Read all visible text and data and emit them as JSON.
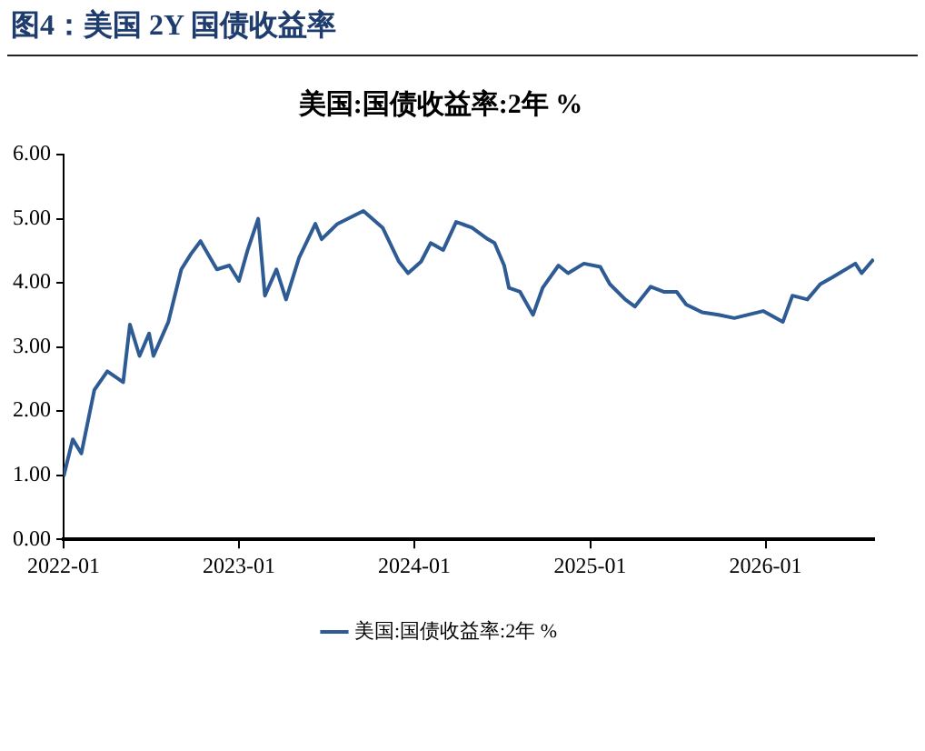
{
  "chart_data": {
    "type": "line",
    "title": "图4：美国 2Y 国债收益率",
    "subtitle": "美国:国债收益率:2年 %",
    "x": [
      "2022-01-01",
      "2022-01-20",
      "2022-02-07",
      "2022-03-06",
      "2022-04-02",
      "2022-05-05",
      "2022-05-19",
      "2022-06-08",
      "2022-06-28",
      "2022-07-07",
      "2022-08-07",
      "2022-09-03",
      "2022-09-23",
      "2022-10-13",
      "2022-11-16",
      "2022-12-12",
      "2023-01-01",
      "2023-01-19",
      "2023-02-10",
      "2023-02-24",
      "2023-03-20",
      "2023-04-09",
      "2023-05-06",
      "2023-06-09",
      "2023-06-22",
      "2023-07-25",
      "2023-09-17",
      "2023-10-27",
      "2023-11-30",
      "2023-12-19",
      "2024-01-15",
      "2024-02-04",
      "2024-03-01",
      "2024-03-28",
      "2024-04-30",
      "2024-06-02",
      "2024-06-16",
      "2024-07-06",
      "2024-07-16",
      "2024-08-08",
      "2024-09-04",
      "2024-09-24",
      "2024-10-27",
      "2024-11-16",
      "2024-12-19",
      "2025-01-22",
      "2025-02-11",
      "2025-03-15",
      "2025-04-04",
      "2025-05-07",
      "2025-06-03",
      "2025-06-30",
      "2025-07-20",
      "2025-08-22",
      "2025-09-25",
      "2025-10-28",
      "2025-11-24",
      "2025-12-27",
      "2026-02-06",
      "2026-02-26",
      "2026-03-29",
      "2026-04-25",
      "2026-05-21",
      "2026-07-07",
      "2026-07-20",
      "2026-08-14"
    ],
    "series": [
      {
        "name": "美国:国债收益率:2年 %",
        "color": "#2f5b94",
        "values": [
          0.98,
          1.56,
          1.34,
          2.33,
          2.62,
          2.45,
          3.35,
          2.86,
          3.21,
          2.86,
          3.39,
          4.21,
          4.45,
          4.65,
          4.21,
          4.27,
          4.03,
          4.51,
          5.0,
          3.8,
          4.21,
          3.74,
          4.39,
          4.92,
          4.68,
          4.92,
          5.12,
          4.86,
          4.33,
          4.15,
          4.33,
          4.62,
          4.51,
          4.95,
          4.86,
          4.68,
          4.62,
          4.27,
          3.92,
          3.86,
          3.5,
          3.92,
          4.27,
          4.15,
          4.3,
          4.25,
          3.98,
          3.74,
          3.63,
          3.94,
          3.86,
          3.86,
          3.66,
          3.54,
          3.5,
          3.45,
          3.5,
          3.56,
          3.39,
          3.8,
          3.74,
          3.98,
          4.09,
          4.3,
          4.15,
          4.37
        ]
      }
    ],
    "xlim": [
      "2022-01-01",
      "2026-08-15"
    ],
    "xticks": [
      "2022-01",
      "2023-01",
      "2024-01",
      "2025-01",
      "2026-01"
    ],
    "ylim": [
      0,
      6
    ],
    "yticks": [
      {
        "value": 0,
        "label": "0.00"
      },
      {
        "value": 1,
        "label": "1.00"
      },
      {
        "value": 2,
        "label": "2.00"
      },
      {
        "value": 3,
        "label": "3.00"
      },
      {
        "value": 4,
        "label": "4.00"
      },
      {
        "value": 5,
        "label": "5.00"
      },
      {
        "value": 6,
        "label": "6.00"
      }
    ],
    "grid": false,
    "legend": "bottom",
    "marker": "none",
    "line_style": "solid"
  }
}
